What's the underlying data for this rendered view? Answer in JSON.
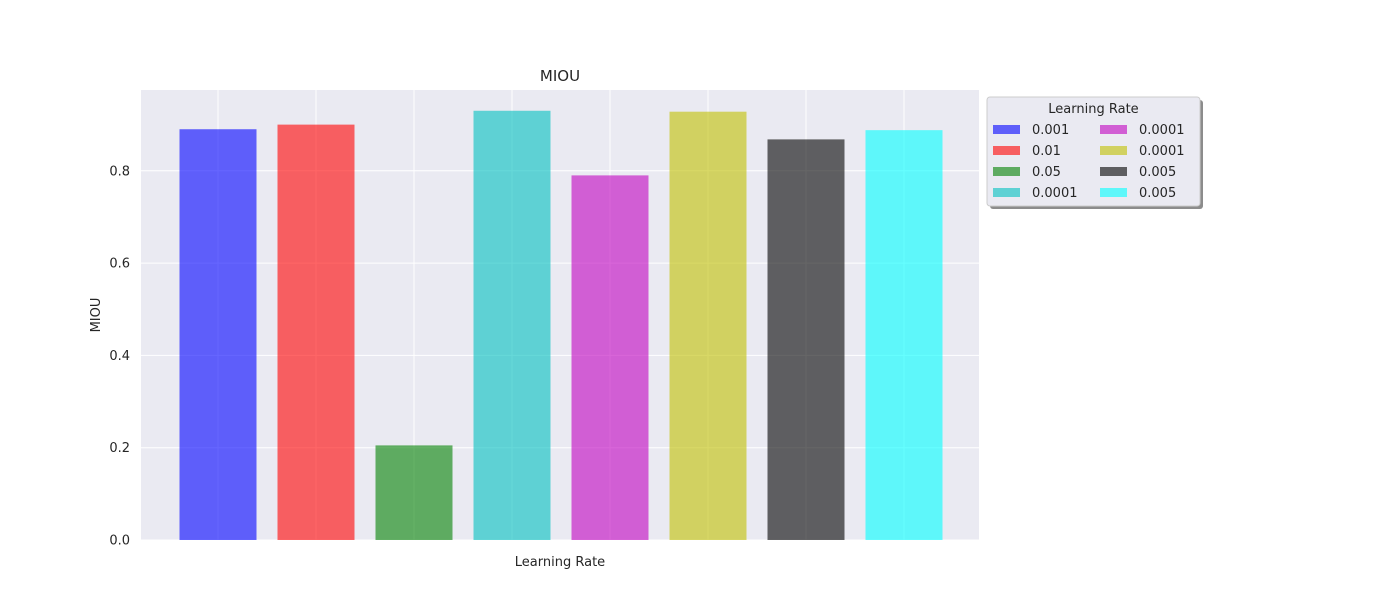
{
  "chart_data": {
    "type": "bar",
    "title": "MIOU",
    "xlabel": "Learning Rate",
    "ylabel": "MIOU",
    "ylim": [
      0,
      0.975
    ],
    "yticks": [
      0.0,
      0.2,
      0.4,
      0.6,
      0.8
    ],
    "ytick_labels": [
      "0.0",
      "0.2",
      "0.4",
      "0.6",
      "0.8"
    ],
    "grid": true,
    "legend": {
      "title": "Learning Rate",
      "placement": "outside-top-right",
      "columns": 2
    },
    "series": [
      {
        "name": "0.001",
        "value": 0.89,
        "color": "#0000ff"
      },
      {
        "name": "0.01",
        "value": 0.9,
        "color": "#ff0000"
      },
      {
        "name": "0.05",
        "value": 0.205,
        "color": "#008000"
      },
      {
        "name": "0.0001",
        "value": 0.93,
        "color": "#00bfbf"
      },
      {
        "name": "0.0001",
        "value": 0.79,
        "color": "#bf00bf"
      },
      {
        "name": "0.0001",
        "value": 0.928,
        "color": "#bfbf00"
      },
      {
        "name": "0.005",
        "value": 0.868,
        "color": "#000000"
      },
      {
        "name": "0.005",
        "value": 0.888,
        "color": "#00ffff"
      }
    ]
  }
}
